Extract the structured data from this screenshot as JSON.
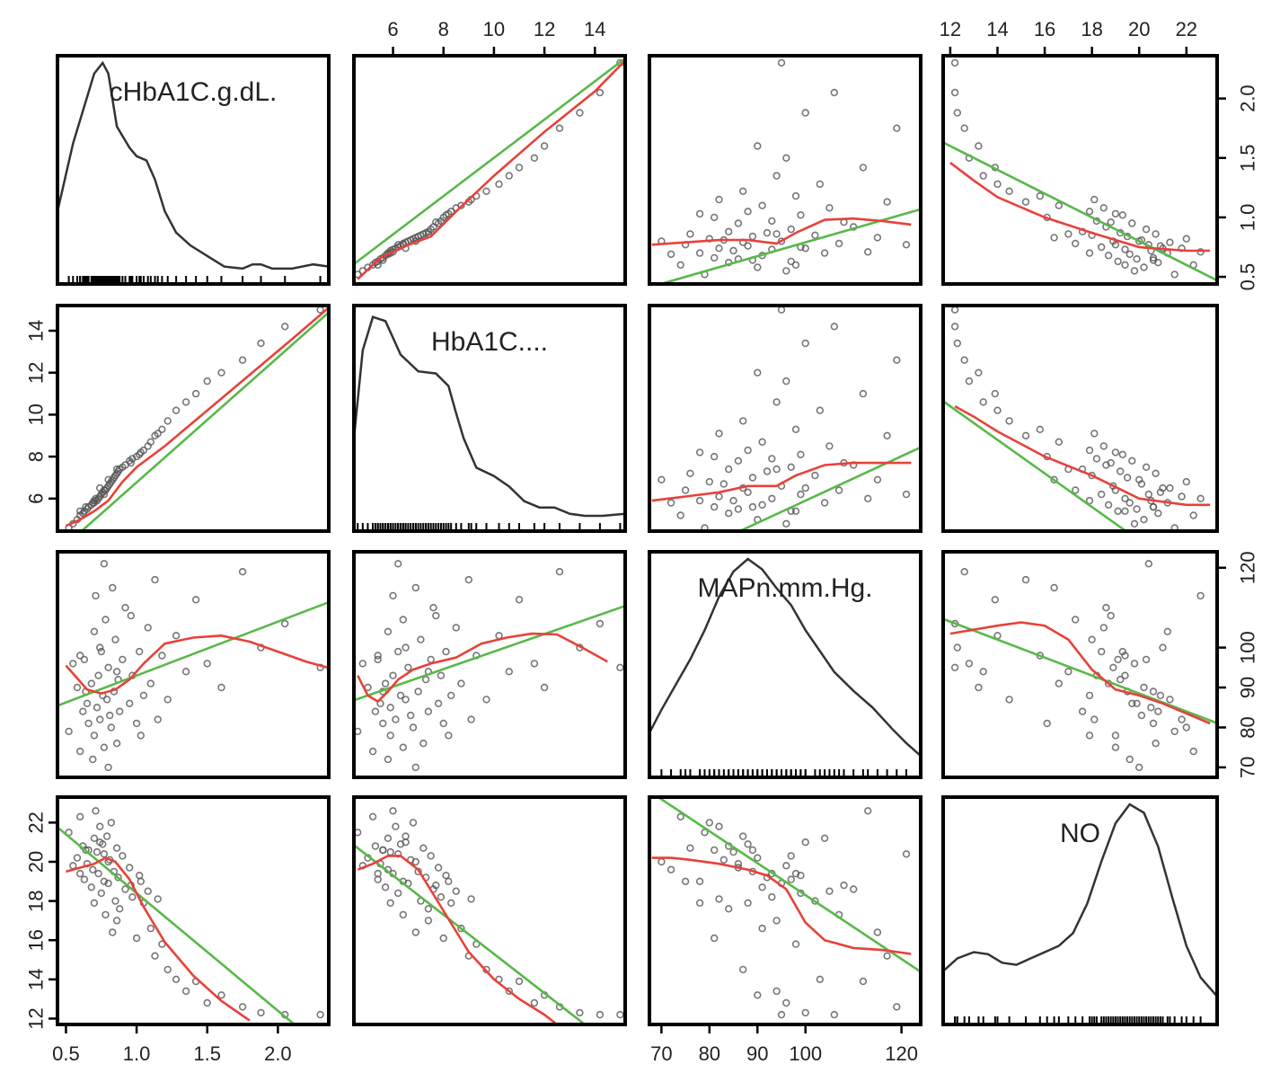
{
  "chart_data": {
    "type": "scatter",
    "variables": [
      "cHbA1C.g.dL.",
      "HbA1C....",
      "MAPn.mm.Hg.",
      "NO"
    ],
    "ranges": [
      [
        0.44,
        2.36
      ],
      [
        4.45,
        15.2
      ],
      [
        67.5,
        124
      ],
      [
        11.7,
        23.3
      ]
    ],
    "ticks": [
      {
        "values": [
          0.5,
          1.0,
          1.5,
          2.0
        ],
        "labels": [
          "0.5",
          "1.0",
          "1.5",
          "2.0"
        ]
      },
      {
        "values": [
          6,
          8,
          10,
          12,
          14
        ],
        "labels": [
          "6",
          "8",
          "10",
          "12",
          "14"
        ]
      },
      {
        "values": [
          70,
          80,
          90,
          100,
          120
        ],
        "labels": [
          "70",
          "80",
          "90",
          "100",
          "120"
        ]
      },
      {
        "values": [
          12,
          14,
          16,
          18,
          20,
          22
        ],
        "labels": [
          "12",
          "14",
          "16",
          "18",
          "20",
          "22"
        ]
      }
    ],
    "right_ticks": [
      {
        "values": [
          0.5,
          1.0,
          1.5,
          2.0
        ],
        "labels": [
          "0.5",
          "1.0",
          "1.5",
          "2.0"
        ]
      },
      null,
      {
        "values": [
          70,
          80,
          90,
          100,
          120
        ],
        "labels": [
          "70",
          "80",
          "90",
          "100",
          "120"
        ]
      },
      null
    ],
    "colors": {
      "points": "#555555",
      "loess": "#e8413a",
      "linear": "#59b84a",
      "density": "#333333",
      "frame": "#000000"
    },
    "density_curves": [
      {
        "x": [
          0.44,
          0.55,
          0.7,
          0.76,
          0.8,
          0.86,
          0.95,
          1.0,
          1.07,
          1.13,
          1.2,
          1.28,
          1.38,
          1.5,
          1.62,
          1.75,
          1.82,
          1.88,
          1.96,
          2.1,
          2.25,
          2.36
        ],
        "y": [
          0.3,
          0.62,
          0.95,
          1.0,
          0.95,
          0.7,
          0.6,
          0.56,
          0.54,
          0.45,
          0.3,
          0.2,
          0.14,
          0.09,
          0.04,
          0.03,
          0.05,
          0.05,
          0.03,
          0.03,
          0.05,
          0.04
        ]
      },
      {
        "x": [
          4.45,
          4.8,
          5.2,
          5.7,
          6.3,
          7.0,
          7.7,
          8.2,
          8.5,
          8.8,
          9.3,
          10.0,
          10.6,
          11.2,
          11.8,
          12.4,
          13.0,
          13.6,
          14.3,
          15.2
        ],
        "y": [
          0.4,
          0.82,
          0.98,
          0.96,
          0.8,
          0.72,
          0.71,
          0.65,
          0.52,
          0.4,
          0.26,
          0.22,
          0.17,
          0.1,
          0.07,
          0.07,
          0.04,
          0.03,
          0.03,
          0.04
        ]
      },
      {
        "x": [
          67.5,
          70,
          73,
          76,
          79,
          82,
          85,
          88,
          91,
          94,
          97,
          100,
          103,
          106,
          110,
          114,
          118,
          121,
          124
        ],
        "y": [
          0.17,
          0.28,
          0.4,
          0.52,
          0.66,
          0.82,
          0.94,
          1.0,
          0.95,
          0.86,
          0.78,
          0.66,
          0.56,
          0.46,
          0.37,
          0.29,
          0.19,
          0.12,
          0.06
        ]
      },
      {
        "x": [
          11.7,
          12.3,
          13.0,
          13.6,
          14.2,
          14.8,
          15.4,
          16.0,
          16.6,
          17.2,
          17.8,
          18.4,
          19.0,
          19.6,
          20.2,
          20.8,
          21.4,
          22.0,
          22.6,
          23.3
        ],
        "y": [
          0.21,
          0.27,
          0.3,
          0.29,
          0.25,
          0.24,
          0.27,
          0.3,
          0.33,
          0.39,
          0.53,
          0.73,
          0.91,
          1.0,
          0.96,
          0.8,
          0.56,
          0.33,
          0.18,
          0.09
        ]
      }
    ],
    "linear_fits": [
      {
        "row": 1,
        "col": 0,
        "intercept": 0.81,
        "slope": 5.96
      },
      {
        "row": 0,
        "col": 1,
        "intercept": -0.109,
        "slope": 0.161
      },
      {
        "row": 2,
        "col": 0,
        "intercept": 79.5,
        "slope": 13.5
      },
      {
        "row": 0,
        "col": 2,
        "intercept": -0.37,
        "slope": 0.0116
      },
      {
        "row": 3,
        "col": 0,
        "intercept": 24.4,
        "slope": -6.0
      },
      {
        "row": 0,
        "col": 3,
        "intercept": 2.8,
        "slope": -0.1
      },
      {
        "row": 2,
        "col": 1,
        "intercept": 77.0,
        "slope": 2.2
      },
      {
        "row": 1,
        "col": 2,
        "intercept": -4.7,
        "slope": 0.106
      },
      {
        "row": 3,
        "col": 1,
        "intercept": 25.3,
        "slope": -1.0
      },
      {
        "row": 1,
        "col": 3,
        "intercept": 20.0,
        "slope": -0.8
      },
      {
        "row": 3,
        "col": 2,
        "intercept": 34.6,
        "slope": -0.163
      },
      {
        "row": 2,
        "col": 3,
        "intercept": 133.5,
        "slope": -2.25
      }
    ],
    "loess_fits": [
      {
        "row": 1,
        "col": 0,
        "x": [
          0.5,
          0.6,
          0.7,
          0.8,
          0.9,
          1.0,
          1.2,
          1.5,
          1.8,
          2.1,
          2.36
        ],
        "y": [
          4.7,
          5.0,
          5.4,
          5.9,
          6.8,
          7.5,
          8.5,
          10.2,
          11.9,
          13.6,
          15.1
        ]
      },
      {
        "row": 0,
        "col": 1,
        "x": [
          4.6,
          5.5,
          6.5,
          7.5,
          8.5,
          10.0,
          12.0,
          14.0,
          15.2
        ],
        "y": [
          0.48,
          0.66,
          0.76,
          0.84,
          1.05,
          1.35,
          1.72,
          2.06,
          2.32
        ]
      },
      {
        "row": 2,
        "col": 0,
        "x": [
          0.5,
          0.55,
          0.65,
          0.75,
          0.85,
          0.95,
          1.05,
          1.2,
          1.4,
          1.6,
          1.8,
          2.0,
          2.2,
          2.35
        ],
        "y": [
          95.5,
          93.5,
          89.5,
          88.5,
          89.5,
          92.0,
          96.0,
          101.0,
          102.5,
          103.0,
          101.5,
          99.0,
          96.5,
          95.0
        ]
      },
      {
        "row": 0,
        "col": 2,
        "x": [
          68,
          75,
          82,
          88,
          94,
          98,
          104,
          110,
          116,
          122
        ],
        "y": [
          0.77,
          0.79,
          0.81,
          0.81,
          0.78,
          0.87,
          0.98,
          0.99,
          0.97,
          0.94
        ]
      },
      {
        "row": 3,
        "col": 0,
        "x": [
          0.5,
          0.6,
          0.7,
          0.78,
          0.85,
          0.95,
          1.05,
          1.2,
          1.4,
          1.6,
          1.8
        ],
        "y": [
          19.5,
          19.7,
          19.9,
          20.2,
          20.0,
          19.1,
          17.7,
          15.9,
          14.2,
          12.9,
          11.9
        ]
      },
      {
        "row": 0,
        "col": 3,
        "x": [
          12.0,
          13.0,
          14.0,
          16.0,
          18.0,
          20.0,
          22.0,
          23.0
        ],
        "y": [
          1.46,
          1.31,
          1.17,
          1.0,
          0.87,
          0.75,
          0.72,
          0.72
        ]
      },
      {
        "row": 2,
        "col": 1,
        "x": [
          4.6,
          5.0,
          5.4,
          5.8,
          6.2,
          6.8,
          7.5,
          8.5,
          9.5,
          10.5,
          11.5,
          12.5,
          13.5,
          14.5
        ],
        "y": [
          93.0,
          88.0,
          86.5,
          89.0,
          92.0,
          94.5,
          96.0,
          97.5,
          101.0,
          102.5,
          103.5,
          103.3,
          100.0,
          96.5
        ]
      },
      {
        "row": 1,
        "col": 2,
        "x": [
          68,
          75,
          82,
          88,
          94,
          98,
          104,
          110,
          116,
          122
        ],
        "y": [
          5.9,
          6.1,
          6.3,
          6.6,
          6.6,
          7.1,
          7.6,
          7.7,
          7.7,
          7.7
        ]
      },
      {
        "row": 3,
        "col": 1,
        "x": [
          4.6,
          5.2,
          5.8,
          6.3,
          7.0,
          8.0,
          9.0,
          10.0,
          11.0,
          12.0,
          12.6
        ],
        "y": [
          19.6,
          19.9,
          20.3,
          20.3,
          19.6,
          17.5,
          15.4,
          14.0,
          13.0,
          12.2,
          11.6
        ]
      },
      {
        "row": 1,
        "col": 3,
        "x": [
          12.2,
          13.0,
          14.0,
          16.0,
          18.0,
          20.0,
          22.0,
          23.0
        ],
        "y": [
          10.4,
          9.9,
          9.2,
          8.0,
          7.1,
          6.0,
          5.7,
          5.7
        ]
      },
      {
        "row": 3,
        "col": 2,
        "x": [
          68,
          72,
          76,
          82,
          88,
          92,
          96,
          100,
          104,
          110,
          116,
          122
        ],
        "y": [
          20.2,
          20.2,
          20.1,
          19.9,
          19.6,
          19.3,
          18.6,
          16.9,
          16.0,
          15.6,
          15.5,
          15.3
        ]
      },
      {
        "row": 2,
        "col": 3,
        "x": [
          12.0,
          13.0,
          14.0,
          15.0,
          16.0,
          17.0,
          18.0,
          19.0,
          20.0,
          21.0,
          22.0,
          23.0
        ],
        "y": [
          103.5,
          104.5,
          105.5,
          106.3,
          105.5,
          102.0,
          94.5,
          89.5,
          88.0,
          86.0,
          83.5,
          81.0
        ]
      }
    ],
    "observations": [
      [
        0.52,
        4.6,
        79,
        21.5
      ],
      [
        0.55,
        4.8,
        96,
        19.8
      ],
      [
        0.58,
        5.0,
        90,
        20.2
      ],
      [
        0.6,
        5.2,
        74,
        22.3
      ],
      [
        0.62,
        5.3,
        84,
        20.8
      ],
      [
        0.63,
        5.4,
        97,
        19.1
      ],
      [
        0.65,
        5.5,
        86,
        19.9
      ],
      [
        0.66,
        5.6,
        81,
        20.6
      ],
      [
        0.68,
        5.7,
        91,
        18.7
      ],
      [
        0.7,
        5.8,
        104,
        21.2
      ],
      [
        0.7,
        5.9,
        78,
        17.9
      ],
      [
        0.72,
        5.9,
        85,
        20.5
      ],
      [
        0.73,
        6.0,
        93,
        19.4
      ],
      [
        0.74,
        6.1,
        82,
        21.8
      ],
      [
        0.75,
        6.2,
        99,
        18.4
      ],
      [
        0.76,
        6.3,
        88,
        20.9
      ],
      [
        0.77,
        6.4,
        75,
        19.0
      ],
      [
        0.78,
        6.4,
        107,
        17.3
      ],
      [
        0.79,
        6.5,
        87,
        21.3
      ],
      [
        0.8,
        6.6,
        95,
        18.9
      ],
      [
        0.81,
        6.7,
        83,
        20.1
      ],
      [
        0.82,
        6.8,
        80,
        22.0
      ],
      [
        0.83,
        6.9,
        115,
        16.4
      ],
      [
        0.84,
        7.0,
        89,
        19.5
      ],
      [
        0.85,
        7.1,
        102,
        18.0
      ],
      [
        0.86,
        7.2,
        76,
        20.7
      ],
      [
        0.87,
        7.3,
        92,
        19.2
      ],
      [
        0.88,
        7.4,
        84,
        17.6
      ],
      [
        0.9,
        7.5,
        97,
        20.3
      ],
      [
        0.92,
        7.6,
        110,
        18.6
      ],
      [
        0.95,
        7.8,
        86,
        19.7
      ],
      [
        0.97,
        7.9,
        93,
        18.2
      ],
      [
        1.0,
        8.0,
        81,
        16.1
      ],
      [
        1.02,
        8.1,
        99,
        19.3
      ],
      [
        1.05,
        8.3,
        88,
        17.9
      ],
      [
        1.08,
        8.5,
        105,
        18.5
      ],
      [
        1.1,
        8.7,
        91,
        16.6
      ],
      [
        1.13,
        9.0,
        117,
        15.2
      ],
      [
        1.18,
        9.3,
        98,
        15.8
      ],
      [
        1.22,
        9.7,
        87,
        14.5
      ],
      [
        1.28,
        10.2,
        103,
        14.0
      ],
      [
        1.35,
        10.6,
        94,
        13.4
      ],
      [
        1.42,
        11.0,
        112,
        13.9
      ],
      [
        1.5,
        11.6,
        96,
        12.8
      ],
      [
        1.6,
        12.0,
        90,
        13.2
      ],
      [
        1.75,
        12.6,
        119,
        12.6
      ],
      [
        1.88,
        13.4,
        100,
        12.3
      ],
      [
        2.05,
        14.2,
        106,
        12.2
      ],
      [
        2.3,
        15.0,
        95,
        12.2
      ],
      [
        0.69,
        5.8,
        72,
        19.6
      ],
      [
        0.77,
        6.2,
        121,
        20.4
      ],
      [
        0.74,
        6.5,
        100,
        21.0
      ],
      [
        0.8,
        6.9,
        70,
        20.0
      ],
      [
        0.96,
        7.7,
        108,
        18.8
      ],
      [
        1.03,
        8.2,
        78,
        19.0
      ],
      [
        0.64,
        5.6,
        89,
        20.6
      ],
      [
        0.71,
        6.0,
        113,
        22.6
      ],
      [
        0.86,
        7.4,
        94,
        17.0
      ],
      [
        1.15,
        9.1,
        82,
        18.1
      ],
      [
        0.6,
        5.4,
        98,
        19.4
      ]
    ]
  }
}
